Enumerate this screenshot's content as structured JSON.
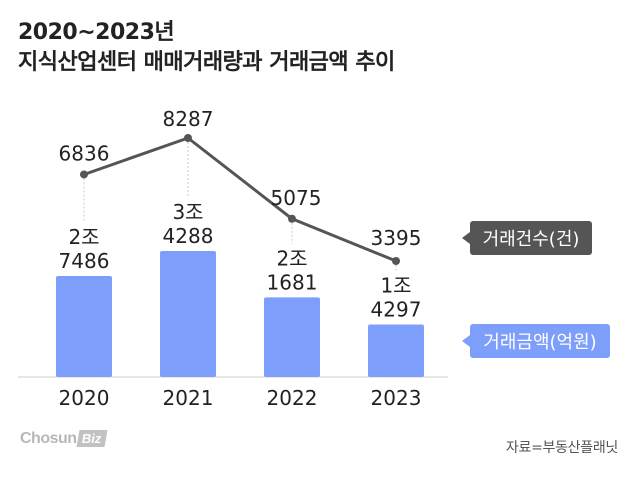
{
  "title_line1": "2020~2023년",
  "title_line2": "지식산업센터 매매거래량과 거래금액 추이",
  "source": "자료=부동산플래닛",
  "brand": {
    "main": "Chosun",
    "sub": "Biz"
  },
  "colors": {
    "bar": "#7d9efb",
    "line": "#555555",
    "title": "#222222",
    "legend_count_bg": "#555555",
    "legend_amount_bg": "#7d9efb"
  },
  "chart_data": {
    "type": "bar",
    "categories": [
      "2020",
      "2021",
      "2022",
      "2023"
    ],
    "series": [
      {
        "name": "거래금액(억원)",
        "type": "bar",
        "values": [
          27486,
          34288,
          21681,
          14297
        ],
        "labels": [
          [
            "2조",
            "7486"
          ],
          [
            "3조",
            "4288"
          ],
          [
            "2조",
            "1681"
          ],
          [
            "1조",
            "4297"
          ]
        ]
      },
      {
        "name": "거래건수(건)",
        "type": "line",
        "values": [
          6836,
          8287,
          5075,
          3395
        ],
        "labels": [
          "6836",
          "8287",
          "5075",
          "3395"
        ]
      }
    ],
    "legend": [
      "거래건수(건)",
      "거래금액(억원)"
    ],
    "legend_position": "right",
    "grid": false
  }
}
